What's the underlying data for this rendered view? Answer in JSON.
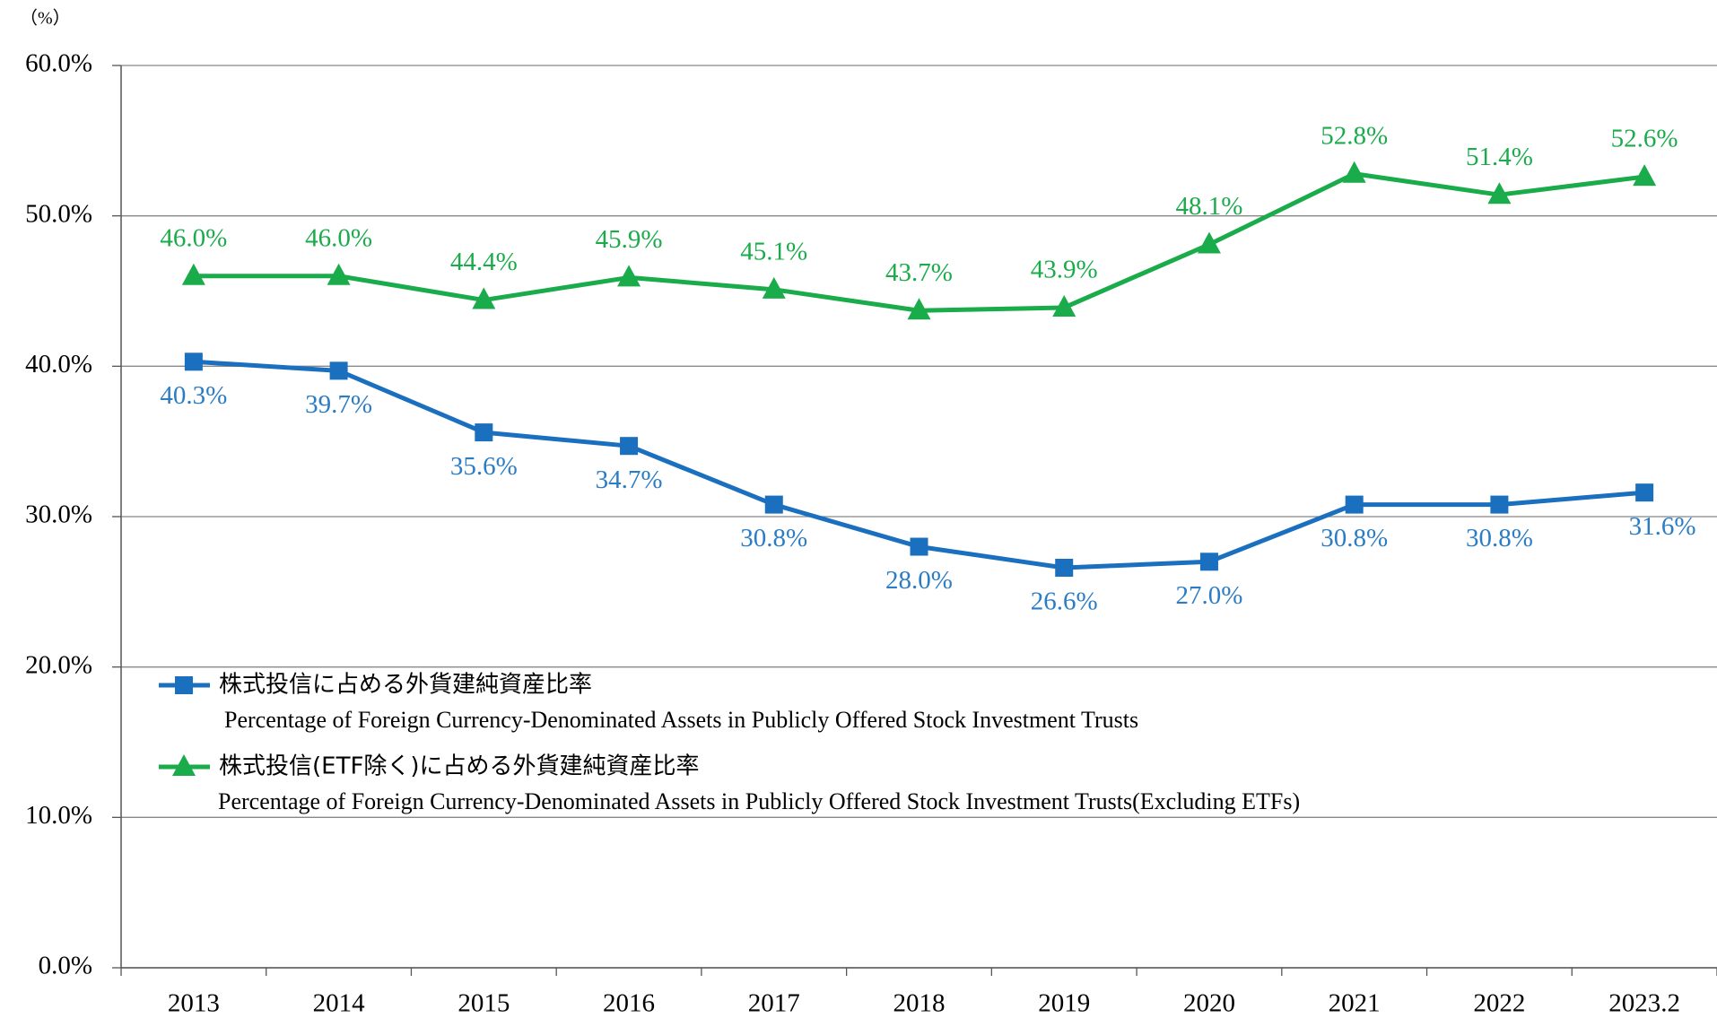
{
  "chart_data": {
    "type": "line",
    "axis_label": "（%）",
    "categories": [
      "2013",
      "2014",
      "2015",
      "2016",
      "2017",
      "2018",
      "2019",
      "2020",
      "2021",
      "2022",
      "2023.2"
    ],
    "series": [
      {
        "name": "株式投信に占める外貨建純資産比率",
        "name_en": "Percentage of Foreign Currency-Denominated Assets in Publicly Offered Stock Investment Trusts",
        "color": "#1a6fbf",
        "label_color": "#2a7cc4",
        "marker": "square",
        "values": [
          40.3,
          39.7,
          35.6,
          34.7,
          30.8,
          28.0,
          26.6,
          27.0,
          30.8,
          30.8,
          31.6
        ],
        "value_labels": [
          "40.3%",
          "39.7%",
          "35.6%",
          "34.7%",
          "30.8%",
          "28.0%",
          "26.6%",
          "27.0%",
          "30.8%",
          "30.8%",
          "31.6%"
        ]
      },
      {
        "name": "株式投信(ETF除く)に占める外貨建純資産比率",
        "name_en": "Percentage of Foreign Currency-Denominated Assets in Publicly Offered Stock Investment Trusts(Excluding ETFs)",
        "color": "#1aab4a",
        "label_color": "#1aab4a",
        "marker": "triangle",
        "values": [
          46.0,
          46.0,
          44.4,
          45.9,
          45.1,
          43.7,
          43.9,
          48.1,
          52.8,
          51.4,
          52.6
        ],
        "value_labels": [
          "46.0%",
          "46.0%",
          "44.4%",
          "45.9%",
          "45.1%",
          "43.7%",
          "43.9%",
          "48.1%",
          "52.8%",
          "51.4%",
          "52.6%"
        ]
      }
    ],
    "ylim": [
      0,
      60
    ],
    "yticks": [
      {
        "value": 0,
        "label": "0.0%"
      },
      {
        "value": 10,
        "label": "10.0%"
      },
      {
        "value": 20,
        "label": "20.0%"
      },
      {
        "value": 30,
        "label": "30.0%"
      },
      {
        "value": 40,
        "label": "40.0%"
      },
      {
        "value": 50,
        "label": "50.0%"
      },
      {
        "value": 60,
        "label": "60.0%"
      }
    ],
    "grid": true
  }
}
